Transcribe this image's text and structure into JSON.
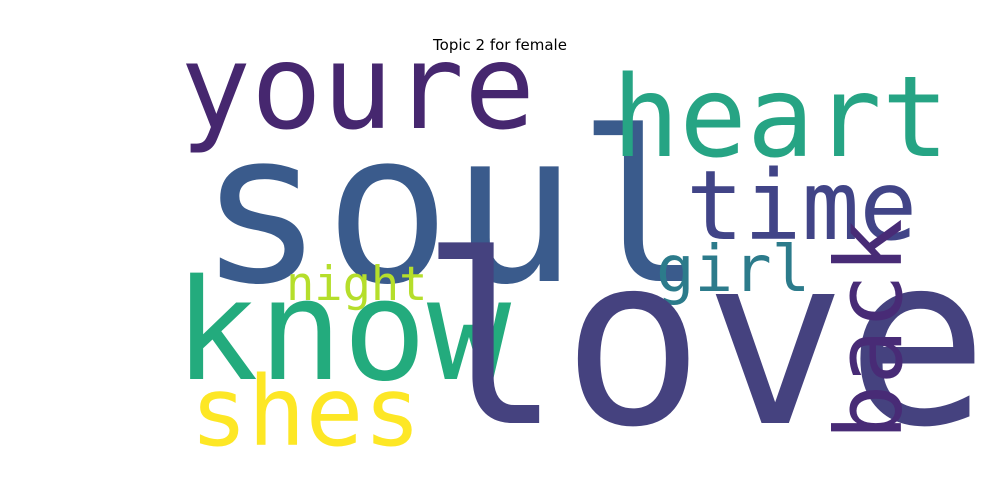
{
  "chart_data": {
    "type": "wordcloud",
    "title": "Topic 2 for female",
    "words": [
      {
        "id": "youre",
        "text": "youre",
        "color": "#46276f"
      },
      {
        "id": "soul",
        "text": "soul",
        "color": "#3a5b8c"
      },
      {
        "id": "heart",
        "text": "heart",
        "color": "#26a484"
      },
      {
        "id": "time",
        "text": "time",
        "color": "#414487"
      },
      {
        "id": "girl",
        "text": "girl",
        "color": "#2c7b8b"
      },
      {
        "id": "night",
        "text": "night",
        "color": "#b5de2b"
      },
      {
        "id": "know",
        "text": "know",
        "color": "#23ab7d"
      },
      {
        "id": "love",
        "text": "love",
        "color": "#45427f"
      },
      {
        "id": "shes",
        "text": "shes",
        "color": "#fde725"
      },
      {
        "id": "back",
        "text": "back",
        "color": "#482b76"
      }
    ]
  }
}
